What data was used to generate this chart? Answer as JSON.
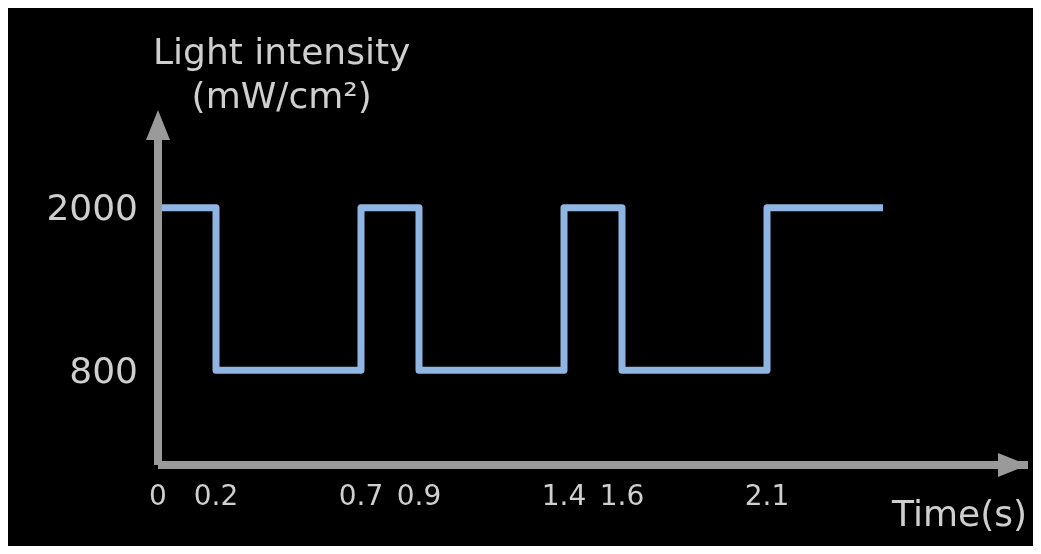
{
  "chart_data": {
    "type": "step",
    "ylabel": "Light intensity\n(mW/cm²)",
    "xlabel": "Time(s)",
    "x": [
      0,
      0.2,
      0.7,
      0.9,
      1.4,
      1.6,
      2.1,
      2.5
    ],
    "series": [
      {
        "color": "#8fb6e3",
        "values": [
          2000,
          800,
          2000,
          800,
          2000,
          800,
          2000,
          2000
        ]
      }
    ],
    "xlim": [
      0,
      3.0
    ],
    "xticks": [
      0,
      0.2,
      0.7,
      0.9,
      1.4,
      1.6,
      2.1
    ],
    "ylim": [
      100,
      2500
    ],
    "yticks": [
      800,
      2000
    ]
  }
}
